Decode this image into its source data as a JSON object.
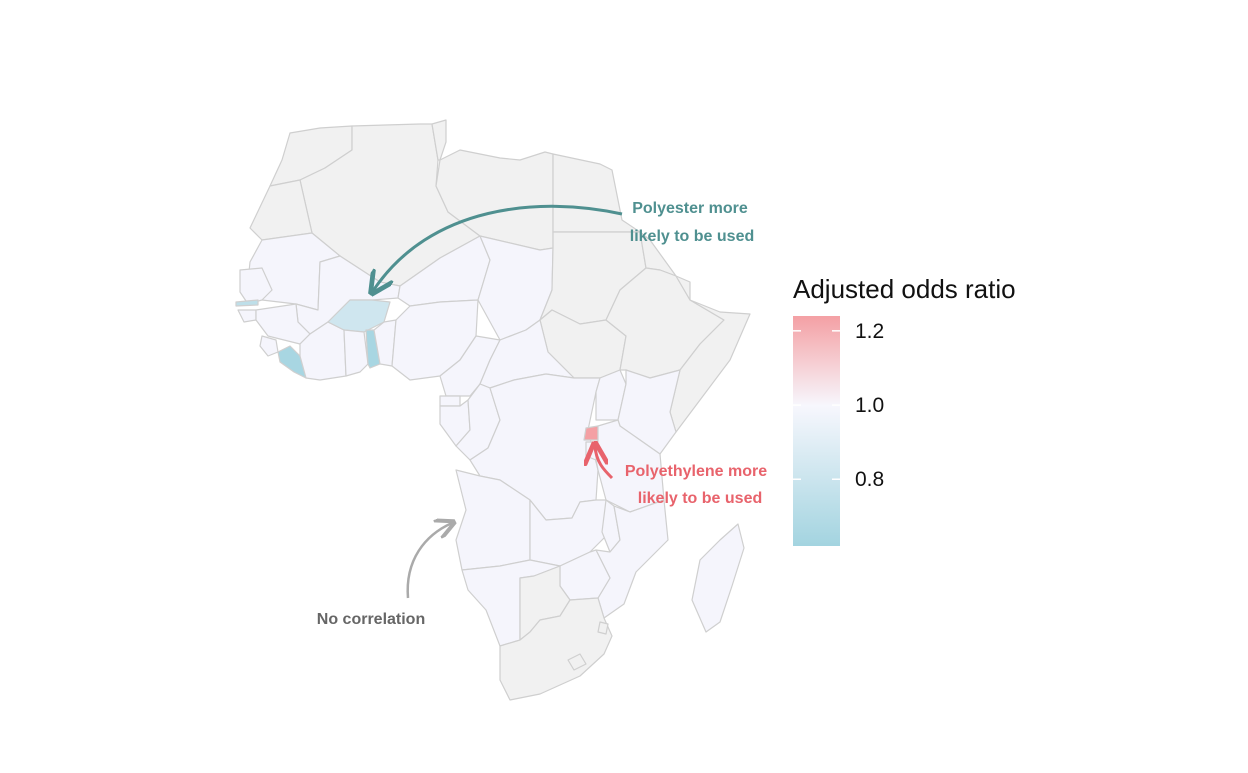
{
  "map": {
    "region": "Africa",
    "colors": {
      "no_data": "#f1f1f1",
      "border": "#cfcfcf",
      "neutral": "#f5f5fc",
      "low": "#a3d4e0",
      "high": "#f4a0a4"
    },
    "countries": [
      {
        "name": "Morocco",
        "value": null
      },
      {
        "name": "Algeria",
        "value": null
      },
      {
        "name": "Tunisia",
        "value": null
      },
      {
        "name": "Libya",
        "value": null
      },
      {
        "name": "Egypt",
        "value": null
      },
      {
        "name": "Western Sahara",
        "value": null
      },
      {
        "name": "Mauritania",
        "value": 1.0
      },
      {
        "name": "Mali",
        "value": 1.0
      },
      {
        "name": "Niger",
        "value": 1.0
      },
      {
        "name": "Chad",
        "value": 1.0
      },
      {
        "name": "Sudan",
        "value": null
      },
      {
        "name": "South Sudan",
        "value": null
      },
      {
        "name": "Eritrea",
        "value": null
      },
      {
        "name": "Ethiopia",
        "value": null
      },
      {
        "name": "Somalia",
        "value": null
      },
      {
        "name": "Djibouti",
        "value": null
      },
      {
        "name": "Senegal",
        "value": 1.0
      },
      {
        "name": "Gambia",
        "value": 0.8
      },
      {
        "name": "Guinea-Bissau",
        "value": 1.0
      },
      {
        "name": "Guinea",
        "value": 1.0
      },
      {
        "name": "Sierra Leone",
        "value": 1.0
      },
      {
        "name": "Liberia",
        "value": 0.72
      },
      {
        "name": "Ivory Coast",
        "value": 1.0
      },
      {
        "name": "Burkina Faso",
        "value": 0.86
      },
      {
        "name": "Ghana",
        "value": 1.0
      },
      {
        "name": "Togo",
        "value": 0.72
      },
      {
        "name": "Benin",
        "value": 1.0
      },
      {
        "name": "Nigeria",
        "value": 1.0
      },
      {
        "name": "Cameroon",
        "value": 1.0
      },
      {
        "name": "Central African Republic",
        "value": 1.0
      },
      {
        "name": "Equatorial Guinea",
        "value": 1.0
      },
      {
        "name": "Gabon",
        "value": 1.0
      },
      {
        "name": "Republic of the Congo",
        "value": 1.0
      },
      {
        "name": "Democratic Republic of the Congo",
        "value": 1.0
      },
      {
        "name": "Uganda",
        "value": 1.0
      },
      {
        "name": "Kenya",
        "value": 1.0
      },
      {
        "name": "Rwanda",
        "value": 1.22
      },
      {
        "name": "Burundi",
        "value": 1.0
      },
      {
        "name": "Tanzania",
        "value": 1.0
      },
      {
        "name": "Angola",
        "value": 1.0
      },
      {
        "name": "Zambia",
        "value": 1.0
      },
      {
        "name": "Malawi",
        "value": 1.0
      },
      {
        "name": "Mozambique",
        "value": 1.0
      },
      {
        "name": "Zimbabwe",
        "value": 1.0
      },
      {
        "name": "Namibia",
        "value": 1.0
      },
      {
        "name": "Botswana",
        "value": null
      },
      {
        "name": "South Africa",
        "value": null
      },
      {
        "name": "Lesotho",
        "value": null
      },
      {
        "name": "Eswatini",
        "value": null
      },
      {
        "name": "Madagascar",
        "value": 1.0
      }
    ]
  },
  "annotations": {
    "polyester": {
      "line1": "Polyester more",
      "line2": "likely to be used",
      "color": "#4f9090"
    },
    "polyethylene": {
      "line1": "Polyethylene more",
      "line2": "likely to be used",
      "color": "#e8636c"
    },
    "none": {
      "text": "No correlation",
      "color": "#666666",
      "arrow_color": "#aaaaaa"
    }
  },
  "legend": {
    "title": "Adjusted odds ratio",
    "ticks": [
      {
        "value": 1.2,
        "label": "1.2"
      },
      {
        "value": 1.0,
        "label": "1.0"
      },
      {
        "value": 0.8,
        "label": "0.8"
      }
    ],
    "range": [
      0.62,
      1.24
    ],
    "gradient": {
      "top": "#f4a0a4",
      "middle": "#f7f7fd",
      "bottom": "#a3d4e0"
    }
  }
}
